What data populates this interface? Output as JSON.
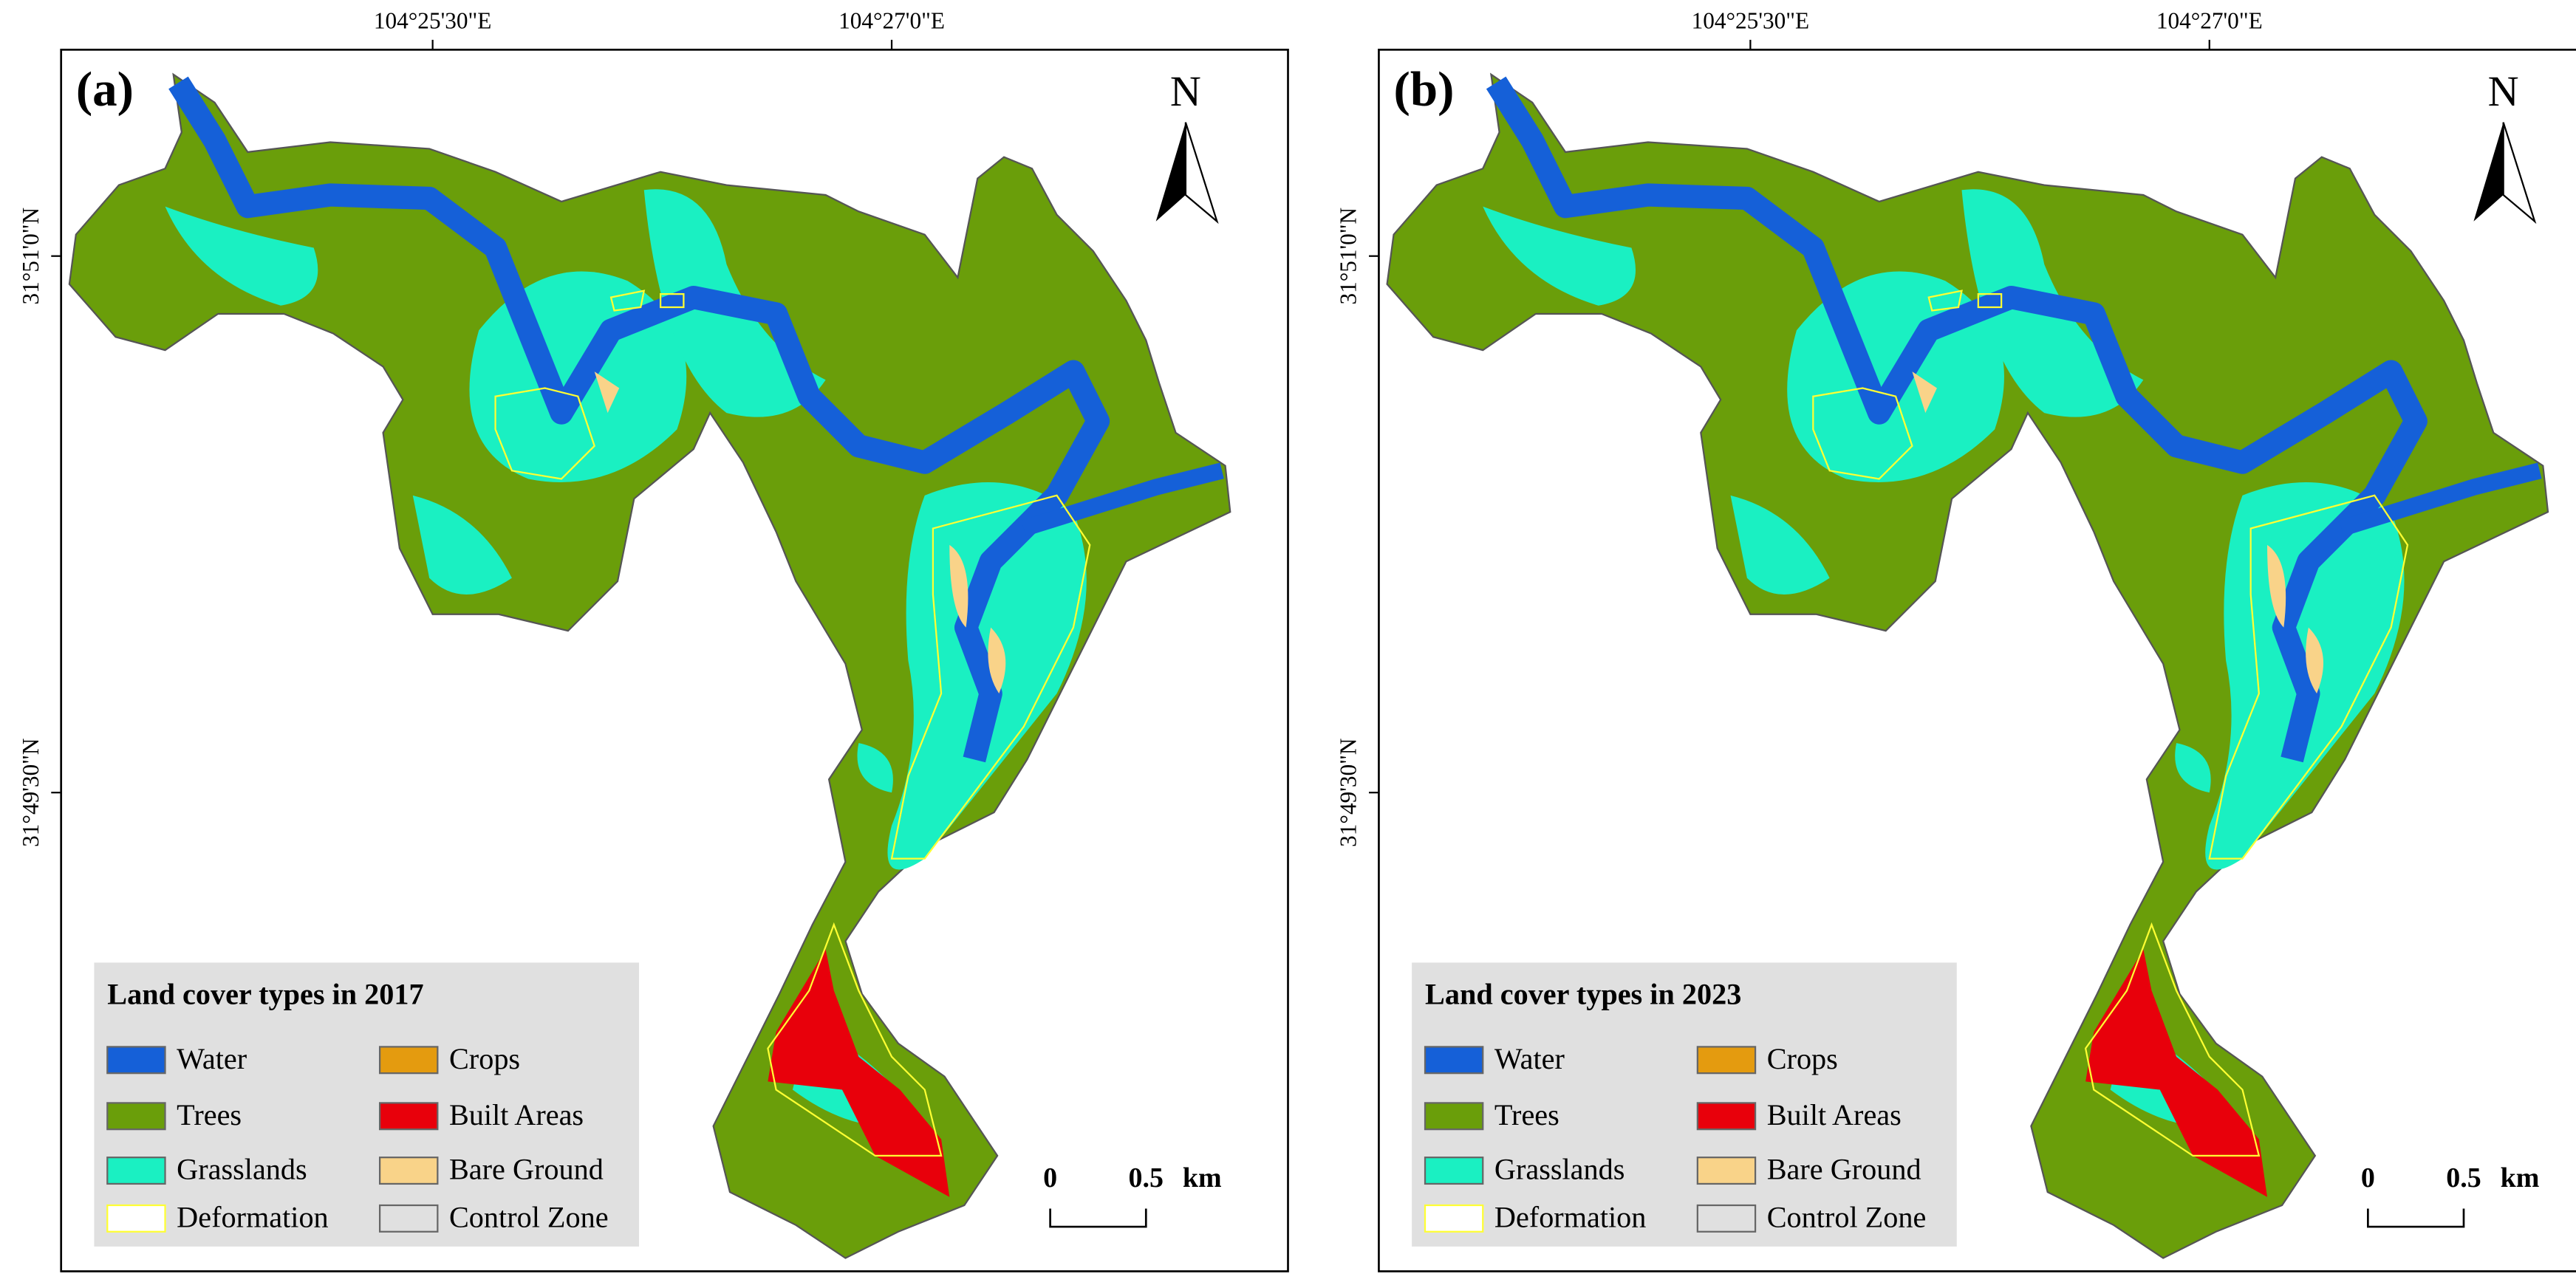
{
  "x_ticks": [
    "104°25'30\"E",
    "104°27'0\"E"
  ],
  "y_ticks": [
    "31°51'0\"N",
    "31°49'30\"N"
  ],
  "north": "N",
  "scale": {
    "start": "0",
    "end": "0.5",
    "unit": "km"
  },
  "legend_items": [
    {
      "name": "Water",
      "color": "#1560d8"
    },
    {
      "name": "Crops",
      "color": "#e49b0f"
    },
    {
      "name": "Trees",
      "color": "#6a9e0a"
    },
    {
      "name": "Built Areas",
      "color": "#e8000b"
    },
    {
      "name": "Grasslands",
      "color": "#1af0c2"
    },
    {
      "name": "Bare Ground",
      "color": "#f9d389"
    },
    {
      "name": "Deformation",
      "color": "#ffffff"
    },
    {
      "name": "Control Zone",
      "color": "#e0e0e0"
    }
  ],
  "panels": [
    {
      "label": "(a)",
      "legend_title": "Land cover types  in 2017"
    },
    {
      "label": "(b)",
      "legend_title": "Land cover types  in 2023"
    }
  ]
}
